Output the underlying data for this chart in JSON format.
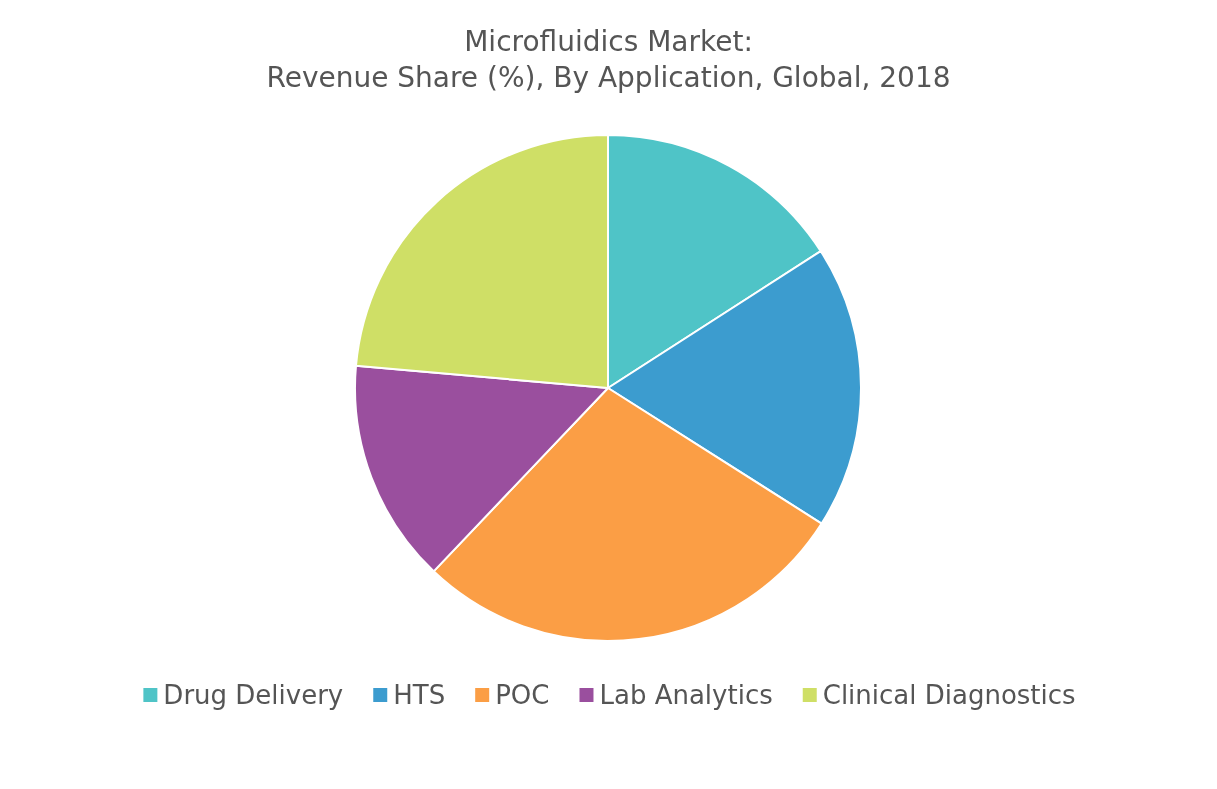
{
  "chart_data": {
    "type": "pie",
    "title": "Microfluidics Market:",
    "subtitle": "Revenue Share (%), By Application, Global, 2018",
    "categories": [
      "Drug Delivery",
      "HTS",
      "POC",
      "Lab Analytics",
      "Clinical Diagnostics"
    ],
    "values": [
      15.9,
      18.1,
      28.1,
      14.3,
      23.6
    ],
    "colors": [
      "#4fc4c7",
      "#3c9ccf",
      "#fb9e45",
      "#9a4f9e",
      "#cfdf66"
    ],
    "legend": "bottom"
  }
}
